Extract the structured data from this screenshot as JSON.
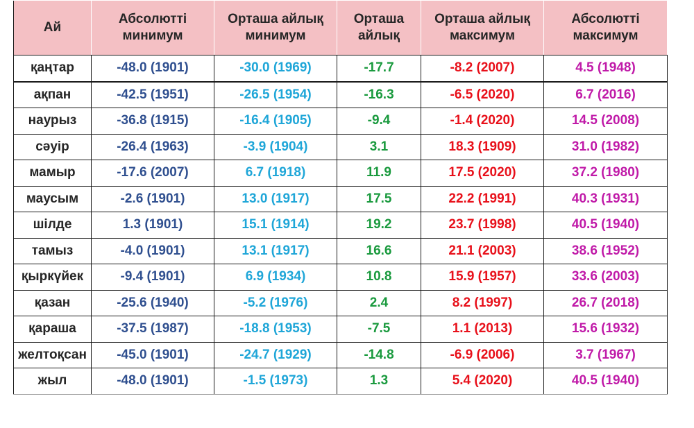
{
  "header": {
    "month": "Ай",
    "abs_min": [
      "Абсолютті",
      "минимум"
    ],
    "avg_min": [
      "Орташа айлық",
      "минимум"
    ],
    "avg": [
      "Орташа",
      "айлық"
    ],
    "avg_max": [
      "Орташа айлық",
      "максимум"
    ],
    "abs_max": [
      "Абсолютті",
      "максимум"
    ]
  },
  "colors": {
    "header_bg": "#f4c0c4",
    "abs_min": "#2f4f8f",
    "avg_min": "#1fa6d8",
    "avg": "#1a9a3e",
    "avg_max": "#e8101a",
    "abs_max": "#c01aa8"
  },
  "rows": [
    {
      "month": "қаңтар",
      "abs_min": "-48.0 (1901)",
      "avg_min": "-30.0 (1969)",
      "avg": "-17.7",
      "avg_max": "-8.2 (2007)",
      "abs_max": "4.5 (1948)"
    },
    {
      "month": "ақпан",
      "abs_min": "-42.5 (1951)",
      "avg_min": "-26.5 (1954)",
      "avg": "-16.3",
      "avg_max": "-6.5 (2020)",
      "abs_max": "6.7 (2016)"
    },
    {
      "month": "наурыз",
      "abs_min": "-36.8 (1915)",
      "avg_min": "-16.4 (1905)",
      "avg": "-9.4",
      "avg_max": "-1.4 (2020)",
      "abs_max": "14.5 (2008)"
    },
    {
      "month": "сәуір",
      "abs_min": "-26.4 (1963)",
      "avg_min": "-3.9 (1904)",
      "avg": "3.1",
      "avg_max": "18.3 (1909)",
      "abs_max": "31.0 (1982)"
    },
    {
      "month": "мамыр",
      "abs_min": "-17.6 (2007)",
      "avg_min": "6.7 (1918)",
      "avg": "11.9",
      "avg_max": "17.5 (2020)",
      "abs_max": "37.2 (1980)"
    },
    {
      "month": "маусым",
      "abs_min": "-2.6 (1901)",
      "avg_min": "13.0 (1917)",
      "avg": "17.5",
      "avg_max": "22.2 (1991)",
      "abs_max": "40.3 (1931)"
    },
    {
      "month": "шілде",
      "abs_min": "1.3 (1901)",
      "avg_min": "15.1 (1914)",
      "avg": "19.2",
      "avg_max": "23.7 (1998)",
      "abs_max": "40.5 (1940)"
    },
    {
      "month": "тамыз",
      "abs_min": "-4.0 (1901)",
      "avg_min": "13.1 (1917)",
      "avg": "16.6",
      "avg_max": "21.1 (2003)",
      "abs_max": "38.6 (1952)"
    },
    {
      "month": "қыркүйек",
      "abs_min": "-9.4 (1901)",
      "avg_min": "6.9 (1934)",
      "avg": "10.8",
      "avg_max": "15.9 (1957)",
      "abs_max": "33.6 (2003)"
    },
    {
      "month": "қазан",
      "abs_min": "-25.6 (1940)",
      "avg_min": "-5.2 (1976)",
      "avg": "2.4",
      "avg_max": "8.2 (1997)",
      "abs_max": "26.7 (2018)"
    },
    {
      "month": "қараша",
      "abs_min": "-37.5 (1987)",
      "avg_min": "-18.8 (1953)",
      "avg": "-7.5",
      "avg_max": "1.1 (2013)",
      "abs_max": "15.6 (1932)"
    },
    {
      "month": "желтоқсан",
      "abs_min": "-45.0 (1901)",
      "avg_min": "-24.7 (1929)",
      "avg": "-14.8",
      "avg_max": "-6.9 (2006)",
      "abs_max": "3.7 (1967)"
    },
    {
      "month": "жыл",
      "abs_min": "-48.0 (1901)",
      "avg_min": "-1.5 (1973)",
      "avg": "1.3",
      "avg_max": "5.4 (2020)",
      "abs_max": "40.5 (1940)"
    }
  ]
}
